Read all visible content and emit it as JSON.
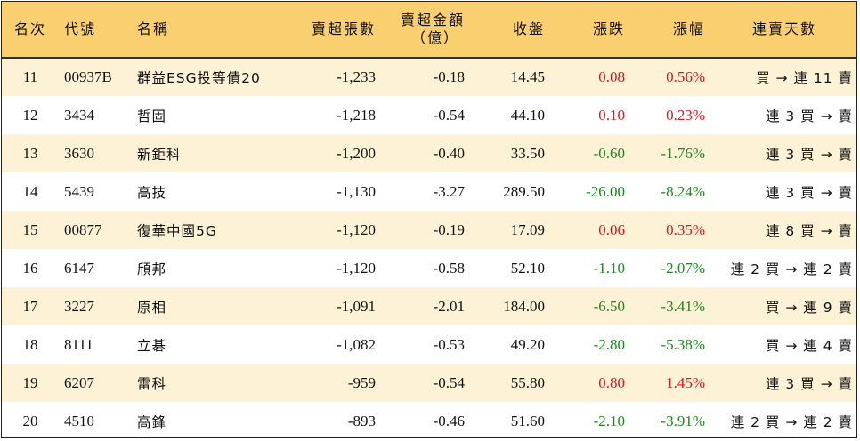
{
  "headers": {
    "rank": "名次",
    "code": "代號",
    "name": "名稱",
    "sell_lots": "賣超張數",
    "sell_amount_line1": "賣超金額",
    "sell_amount_line2": "（億）",
    "close": "收盤",
    "change": "漲跌",
    "change_pct": "漲幅",
    "streak": "連賣天數"
  },
  "colors": {
    "header_bg": "#f9cf70",
    "stripe_bg": "#fdf2d6",
    "up": "#e0141e",
    "down": "#1a8a1a"
  },
  "rows": [
    {
      "rank": "11",
      "code": "00937B",
      "name": "群益ESG投等債20",
      "sell_lots": "-1,233",
      "sell_amount": "-0.18",
      "close": "14.45",
      "change": "0.08",
      "change_pct": "0.56%",
      "streak": "買 → 連 11 賣",
      "dir": "up"
    },
    {
      "rank": "12",
      "code": "3434",
      "name": "哲固",
      "sell_lots": "-1,218",
      "sell_amount": "-0.54",
      "close": "44.10",
      "change": "0.10",
      "change_pct": "0.23%",
      "streak": "連 3 買 → 賣",
      "dir": "up"
    },
    {
      "rank": "13",
      "code": "3630",
      "name": "新鉅科",
      "sell_lots": "-1,200",
      "sell_amount": "-0.40",
      "close": "33.50",
      "change": "-0.60",
      "change_pct": "-1.76%",
      "streak": "連 3 買 → 賣",
      "dir": "down"
    },
    {
      "rank": "14",
      "code": "5439",
      "name": "高技",
      "sell_lots": "-1,130",
      "sell_amount": "-3.27",
      "close": "289.50",
      "change": "-26.00",
      "change_pct": "-8.24%",
      "streak": "連 3 買 → 賣",
      "dir": "down"
    },
    {
      "rank": "15",
      "code": "00877",
      "name": "復華中國5G",
      "sell_lots": "-1,120",
      "sell_amount": "-0.19",
      "close": "17.09",
      "change": "0.06",
      "change_pct": "0.35%",
      "streak": "連 8 買 → 賣",
      "dir": "up"
    },
    {
      "rank": "16",
      "code": "6147",
      "name": "頎邦",
      "sell_lots": "-1,120",
      "sell_amount": "-0.58",
      "close": "52.10",
      "change": "-1.10",
      "change_pct": "-2.07%",
      "streak": "連 2 買 → 連 2 賣",
      "dir": "down"
    },
    {
      "rank": "17",
      "code": "3227",
      "name": "原相",
      "sell_lots": "-1,091",
      "sell_amount": "-2.01",
      "close": "184.00",
      "change": "-6.50",
      "change_pct": "-3.41%",
      "streak": "買 → 連 9 賣",
      "dir": "down"
    },
    {
      "rank": "18",
      "code": "8111",
      "name": "立碁",
      "sell_lots": "-1,082",
      "sell_amount": "-0.53",
      "close": "49.20",
      "change": "-2.80",
      "change_pct": "-5.38%",
      "streak": "買 → 連 4 賣",
      "dir": "down"
    },
    {
      "rank": "19",
      "code": "6207",
      "name": "雷科",
      "sell_lots": "-959",
      "sell_amount": "-0.54",
      "close": "55.80",
      "change": "0.80",
      "change_pct": "1.45%",
      "streak": "連 3 買 → 賣",
      "dir": "up"
    },
    {
      "rank": "20",
      "code": "4510",
      "name": "高鋒",
      "sell_lots": "-893",
      "sell_amount": "-0.46",
      "close": "51.60",
      "change": "-2.10",
      "change_pct": "-3.91%",
      "streak": "連 2 買 → 連 2 賣",
      "dir": "down"
    }
  ]
}
